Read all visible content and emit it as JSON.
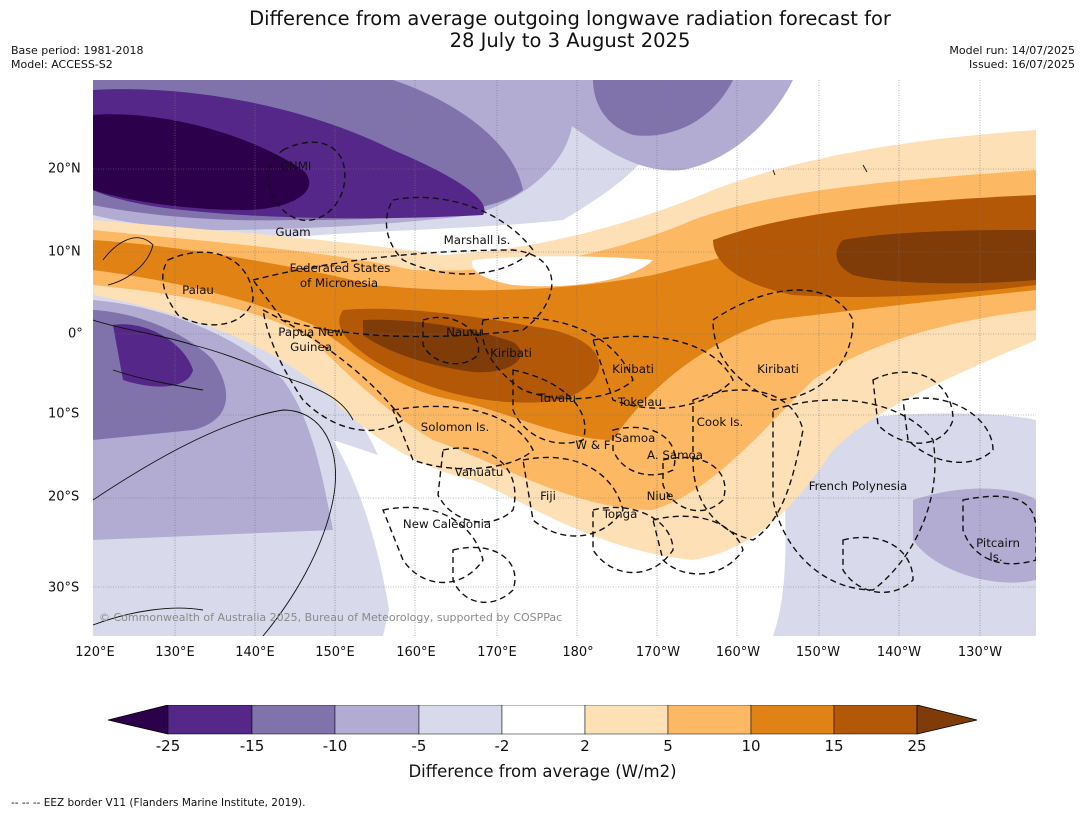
{
  "title_line1": "Difference from average outgoing longwave radiation forecast for",
  "title_line2": "28 July to 3 August 2025",
  "meta_left": [
    "Base period: 1981-2018",
    "Model: ACCESS-S2"
  ],
  "meta_right": [
    "Model run: 14/07/2025",
    "Issued: 16/07/2025"
  ],
  "copyright": "© Commonwealth of Australia 2025, Bureau of Meteorology, supported by COSPPac",
  "lat_labels": [
    "20°N",
    "10°N",
    "0°",
    "10°S",
    "20°S",
    "30°S"
  ],
  "lon_labels": [
    "120°E",
    "130°E",
    "140°E",
    "150°E",
    "160°E",
    "170°E",
    "180°",
    "170°W",
    "160°W",
    "150°W",
    "140°W",
    "130°W"
  ],
  "places": {
    "cnmi": "CNMI",
    "guam": "Guam",
    "marshall": "Marshall Is.",
    "fsm1": "Federated States",
    "fsm2": "of Micronesia",
    "palau": "Palau",
    "png1": "Papua New",
    "png2": "Guinea",
    "nauru": "Nauru",
    "kiribati_w": "Kiribati",
    "kiribati_c": "Kiribati",
    "kiribati_e": "Kiribati",
    "tuvalu": "Tuvalu",
    "tokelau": "Tokelau",
    "solomon": "Solomon Is.",
    "samoa": "Samoa",
    "wf": "W & F",
    "asamoa": "A. Samoa",
    "cook": "Cook Is.",
    "vanuatu": "Vanuatu",
    "fiji": "Fiji",
    "niue": "Niue",
    "tonga": "Tonga",
    "newcal": "New Caledonia",
    "frpoly": "French Polynesia",
    "pitcairn1": "Pitcairn",
    "pitcairn2": "Is."
  },
  "legend": {
    "ticks": [
      "-25",
      "-15",
      "-10",
      "-5",
      "-2",
      "2",
      "5",
      "10",
      "15",
      "25"
    ],
    "colors": [
      "#2d004b",
      "#542788",
      "#8073ac",
      "#b2abd2",
      "#d8daeb",
      "#ffffff",
      "#fee0b6",
      "#fdb863",
      "#e08214",
      "#b35806",
      "#7f3b08"
    ],
    "label": "Difference from average (W/m2)"
  },
  "footnote": "--  --  -- EEZ border V11 (Flanders Marine Institute, 2019)."
}
